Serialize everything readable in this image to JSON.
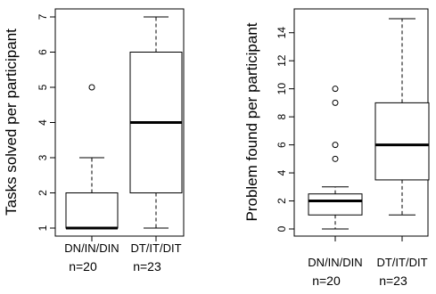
{
  "chart_data": [
    {
      "type": "boxplot",
      "ylabel": "Tasks solved per participant",
      "ylim": [
        1,
        7
      ],
      "yticks": [
        1,
        2,
        3,
        4,
        5,
        6,
        7
      ],
      "categories": [
        "DN/IN/DIN",
        "DT/IT/DIT"
      ],
      "counts": [
        "n=20",
        "n=23"
      ],
      "boxes": [
        {
          "min": 1,
          "q1": 1,
          "median": 1,
          "q3": 2,
          "max": 3,
          "outliers": [
            5
          ]
        },
        {
          "min": 1,
          "q1": 2,
          "median": 4,
          "q3": 6,
          "max": 7,
          "outliers": []
        }
      ]
    },
    {
      "type": "boxplot",
      "ylabel": "Problem found per participant",
      "ylim": [
        0,
        15
      ],
      "yticks": [
        0,
        2,
        4,
        6,
        8,
        10,
        12,
        14
      ],
      "categories": [
        "DN/IN/DIN",
        "DT/IT/DIT"
      ],
      "counts": [
        "n=20",
        "n=23"
      ],
      "boxes": [
        {
          "min": 0,
          "q1": 1,
          "median": 2,
          "q3": 2.5,
          "max": 3,
          "outliers": [
            5,
            6,
            9,
            10
          ]
        },
        {
          "min": 1,
          "q1": 3.5,
          "median": 6,
          "q3": 9,
          "max": 15,
          "outliers": []
        }
      ]
    }
  ]
}
